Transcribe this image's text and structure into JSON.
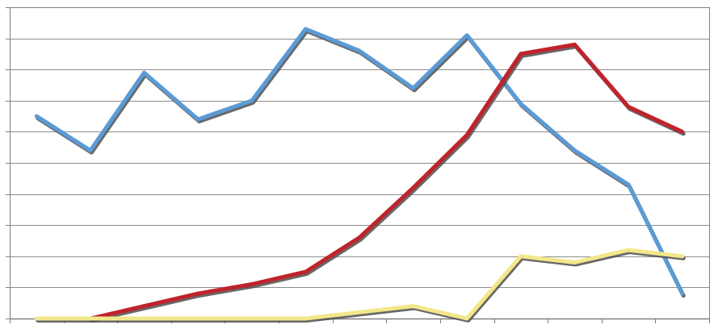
{
  "chart_data": {
    "type": "line",
    "title": "",
    "xlabel": "",
    "ylabel": "",
    "x": [
      1,
      2,
      3,
      4,
      5,
      6,
      7,
      8,
      9,
      10,
      11,
      12,
      13
    ],
    "ylim": [
      0,
      10
    ],
    "grid": true,
    "legend": "none",
    "series": [
      {
        "color": "#5b9bd5",
        "values": [
          6.5,
          5.4,
          7.9,
          6.4,
          7.0,
          9.3,
          8.6,
          7.4,
          9.1,
          6.9,
          5.4,
          4.3,
          0.8
        ]
      },
      {
        "color": "#c0232b",
        "values": [
          null,
          0.0,
          0.4,
          0.8,
          1.1,
          1.5,
          2.6,
          4.2,
          5.9,
          8.5,
          8.8,
          6.8,
          6.0
        ]
      },
      {
        "color": "#f2e78a",
        "values": [
          0.0,
          0.0,
          0.0,
          0.0,
          0.0,
          0.0,
          0.2,
          0.4,
          0.0,
          2.0,
          1.8,
          2.2,
          2.0
        ]
      }
    ]
  }
}
